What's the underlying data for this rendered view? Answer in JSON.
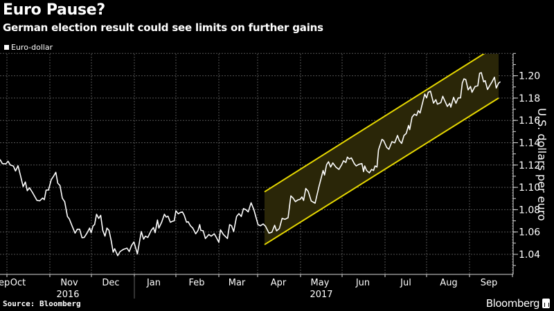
{
  "header": {
    "title": "Euro Pause?",
    "subtitle": "German election result could see limits on further gains"
  },
  "footer": {
    "source": "Source: Bloomberg",
    "brand": "Bloomberg"
  },
  "colors": {
    "background": "#000000",
    "line": "#ffffff",
    "channel": "#e6d800",
    "channel_fill": "#2a2608",
    "grid": "#555555"
  },
  "chart_data": {
    "type": "line",
    "title": "Euro Pause?",
    "subtitle": "German election result could see limits on further gains",
    "legend": [
      {
        "label": "Euro-dollar",
        "color": "#ffffff"
      }
    ],
    "legend_placement": "top-left",
    "xlabel": "",
    "ylabel": "U.S. dollars per euro",
    "ylim": [
      1.022,
      1.22
    ],
    "y_ticks": [
      "1.04",
      "1.06",
      "1.08",
      "1.10",
      "1.12",
      "1.14",
      "1.16",
      "1.18",
      "1.20"
    ],
    "x_unit": "days since 2016-10-01",
    "xlim": [
      -5,
      361
    ],
    "x_ticks": [
      {
        "label": "Sep",
        "day": -4
      },
      {
        "label": "Oct",
        "day": 8
      },
      {
        "label": "Nov",
        "day": 45
      },
      {
        "label": "Dec",
        "day": 75
      },
      {
        "label": "Jan",
        "day": 106
      },
      {
        "label": "Feb",
        "day": 137
      },
      {
        "label": "Mar",
        "day": 166
      },
      {
        "label": "Apr",
        "day": 196
      },
      {
        "label": "May",
        "day": 226
      },
      {
        "label": "Jun",
        "day": 257
      },
      {
        "label": "Jul",
        "day": 288
      },
      {
        "label": "Aug",
        "day": 319
      },
      {
        "label": "Sep",
        "day": 348
      }
    ],
    "month_boundaries": [
      0,
      31,
      61,
      92,
      122,
      153,
      181,
      212,
      242,
      273,
      303,
      334,
      365
    ],
    "years": [
      {
        "label": "2016",
        "day": 44
      },
      {
        "label": "2017",
        "day": 227
      }
    ],
    "year_separator_day": 92,
    "grid": true,
    "series": [
      {
        "name": "Euro-dollar",
        "points": [
          [
            -5,
            1.125
          ],
          [
            -3.3,
            1.1213
          ],
          [
            -0.8,
            1.121
          ],
          [
            0.8,
            1.1234
          ],
          [
            2.5,
            1.12
          ],
          [
            4.7,
            1.119
          ],
          [
            6.2,
            1.1147
          ],
          [
            8,
            1.1194
          ],
          [
            9.7,
            1.111
          ],
          [
            11.7,
            1.1007
          ],
          [
            13.3,
            1.1048
          ],
          [
            14.7,
            1.097
          ],
          [
            16.3,
            1.0996
          ],
          [
            18.3,
            1.0957
          ],
          [
            21.7,
            1.0883
          ],
          [
            23.7,
            1.0879
          ],
          [
            25.8,
            1.0904
          ],
          [
            27,
            1.089
          ],
          [
            28.3,
            1.0976
          ],
          [
            30,
            1.0976
          ],
          [
            32,
            1.1069
          ],
          [
            33.7,
            1.11
          ],
          [
            35.3,
            1.1135
          ],
          [
            36.7,
            1.1038
          ],
          [
            38.3,
            1.1017
          ],
          [
            40,
            1.0903
          ],
          [
            41.7,
            1.0872
          ],
          [
            43.7,
            1.0739
          ],
          [
            45,
            1.0718
          ],
          [
            47,
            1.0656
          ],
          [
            49.2,
            1.059
          ],
          [
            50.8,
            1.0625
          ],
          [
            52.5,
            1.0625
          ],
          [
            54.2,
            1.0549
          ],
          [
            55.8,
            1.0551
          ],
          [
            58,
            1.0594
          ],
          [
            59.7,
            1.0635
          ],
          [
            60.8,
            1.0594
          ],
          [
            62.2,
            1.0656
          ],
          [
            63.3,
            1.0666
          ],
          [
            64.7,
            1.0759
          ],
          [
            66.3,
            1.0722
          ],
          [
            67.7,
            1.0749
          ],
          [
            69.2,
            1.0615
          ],
          [
            70.8,
            1.0563
          ],
          [
            72.2,
            1.0635
          ],
          [
            73.7,
            1.0615
          ],
          [
            75.3,
            1.0522
          ],
          [
            76.7,
            1.0419
          ],
          [
            77.8,
            1.045
          ],
          [
            80,
            1.0388
          ],
          [
            81.7,
            1.0425
          ],
          [
            84.2,
            1.0445
          ],
          [
            86.7,
            1.0456
          ],
          [
            88.3,
            1.0425
          ],
          [
            90,
            1.048
          ],
          [
            91.7,
            1.0511
          ],
          [
            94.2,
            1.0404
          ],
          [
            97,
            1.0604
          ],
          [
            98.7,
            1.0536
          ],
          [
            100,
            1.0563
          ],
          [
            101.7,
            1.0551
          ],
          [
            104.2,
            1.0615
          ],
          [
            105.8,
            1.064
          ],
          [
            107,
            1.0594
          ],
          [
            108.7,
            1.0708
          ],
          [
            109.7,
            1.0635
          ],
          [
            111.7,
            1.0687
          ],
          [
            113.7,
            1.0759
          ],
          [
            115,
            1.0734
          ],
          [
            116.3,
            1.0742
          ],
          [
            118,
            1.0687
          ],
          [
            119.7,
            1.0697
          ],
          [
            120.8,
            1.07
          ],
          [
            122,
            1.079
          ],
          [
            123.7,
            1.0763
          ],
          [
            125.3,
            1.0776
          ],
          [
            126.7,
            1.078
          ],
          [
            128,
            1.075
          ],
          [
            129.7,
            1.0687
          ],
          [
            130.8,
            1.0693
          ],
          [
            132.5,
            1.0656
          ],
          [
            134.2,
            1.0635
          ],
          [
            136.3,
            1.0584
          ],
          [
            138,
            1.0615
          ],
          [
            139.2,
            1.0666
          ],
          [
            140,
            1.0615
          ],
          [
            141.7,
            1.0611
          ],
          [
            143.3,
            1.0542
          ],
          [
            145.8,
            1.0578
          ],
          [
            147.5,
            1.0563
          ],
          [
            149.7,
            1.0584
          ],
          [
            151.3,
            1.0549
          ],
          [
            153,
            1.0507
          ],
          [
            154.2,
            1.0619
          ],
          [
            156.3,
            1.0578
          ],
          [
            159.2,
            1.0542
          ],
          [
            160.8,
            1.0666
          ],
          [
            162.2,
            1.0656
          ],
          [
            163.7,
            1.0604
          ],
          [
            165.8,
            1.0739
          ],
          [
            167.5,
            1.0765
          ],
          [
            169.2,
            1.0739
          ],
          [
            170.8,
            1.081
          ],
          [
            172.5,
            1.08
          ],
          [
            174.2,
            1.078
          ],
          [
            176.3,
            1.0862
          ],
          [
            178.3,
            1.08
          ],
          [
            181.3,
            1.0666
          ],
          [
            183,
            1.0656
          ],
          [
            185,
            1.0672
          ],
          [
            186.7,
            1.0652
          ],
          [
            189.2,
            1.059
          ],
          [
            191.3,
            1.0598
          ],
          [
            193.3,
            1.066
          ],
          [
            194.7,
            1.061
          ],
          [
            196.7,
            1.0631
          ],
          [
            198.7,
            1.0722
          ],
          [
            200.8,
            1.0714
          ],
          [
            203,
            1.0728
          ],
          [
            205,
            1.0924
          ],
          [
            206.7,
            1.0903
          ],
          [
            208.3,
            1.0872
          ],
          [
            210,
            1.0887
          ],
          [
            211.7,
            1.0893
          ],
          [
            213,
            1.0914
          ],
          [
            214.2,
            1.0883
          ],
          [
            215.8,
            1.099
          ],
          [
            217.5,
            1.0965
          ],
          [
            219.7,
            1.0878
          ],
          [
            222.5,
            1.0858
          ],
          [
            225.3,
            1.1007
          ],
          [
            228.3,
            1.1151
          ],
          [
            229.3,
            1.111
          ],
          [
            230.8,
            1.1203
          ],
          [
            232.2,
            1.123
          ],
          [
            233.7,
            1.1182
          ],
          [
            235.3,
            1.1219
          ],
          [
            237.5,
            1.1182
          ],
          [
            239.7,
            1.1161
          ],
          [
            241.7,
            1.1203
          ],
          [
            243,
            1.1238
          ],
          [
            244.7,
            1.1223
          ],
          [
            245.8,
            1.1271
          ],
          [
            247.2,
            1.1254
          ],
          [
            248.7,
            1.1264
          ],
          [
            250.8,
            1.1213
          ],
          [
            252.2,
            1.1192
          ],
          [
            254.2,
            1.1207
          ],
          [
            256.3,
            1.1213
          ],
          [
            257.5,
            1.1141
          ],
          [
            258.3,
            1.1192
          ],
          [
            259.7,
            1.1151
          ],
          [
            261.7,
            1.113
          ],
          [
            263.3,
            1.1161
          ],
          [
            264.7,
            1.1151
          ],
          [
            265.8,
            1.1192
          ],
          [
            267.2,
            1.1182
          ],
          [
            268.3,
            1.1337
          ],
          [
            270.8,
            1.143
          ],
          [
            272,
            1.1419
          ],
          [
            274.2,
            1.1358
          ],
          [
            275.8,
            1.1341
          ],
          [
            278,
            1.1409
          ],
          [
            280,
            1.1399
          ],
          [
            282,
            1.1465
          ],
          [
            283.3,
            1.1419
          ],
          [
            285,
            1.1394
          ],
          [
            286.7,
            1.1465
          ],
          [
            288.3,
            1.1483
          ],
          [
            290,
            1.1555
          ],
          [
            290.8,
            1.1517
          ],
          [
            292.5,
            1.1629
          ],
          [
            294.2,
            1.1656
          ],
          [
            295.8,
            1.1644
          ],
          [
            297,
            1.1687
          ],
          [
            298.3,
            1.1666
          ],
          [
            299.7,
            1.1738
          ],
          [
            301.7,
            1.1835
          ],
          [
            303,
            1.1801
          ],
          [
            304.2,
            1.1852
          ],
          [
            305.8,
            1.1862
          ],
          [
            308,
            1.1755
          ],
          [
            309.7,
            1.1786
          ],
          [
            310.8,
            1.1745
          ],
          [
            313.3,
            1.176
          ],
          [
            314.7,
            1.1816
          ],
          [
            316.3,
            1.1771
          ],
          [
            318,
            1.1725
          ],
          [
            319.7,
            1.1753
          ],
          [
            320.5,
            1.1719
          ],
          [
            322.5,
            1.1807
          ],
          [
            324.2,
            1.1753
          ],
          [
            325.8,
            1.1801
          ],
          [
            327.5,
            1.1801
          ],
          [
            328.8,
            1.1935
          ],
          [
            330,
            1.1972
          ],
          [
            331.3,
            1.1966
          ],
          [
            333,
            1.1873
          ],
          [
            334.7,
            1.1904
          ],
          [
            335.8,
            1.1852
          ],
          [
            338,
            1.1904
          ],
          [
            340,
            1.191
          ],
          [
            341.3,
            1.2022
          ],
          [
            342.5,
            1.2028
          ],
          [
            344.2,
            1.1946
          ],
          [
            345.3,
            1.1956
          ],
          [
            347,
            1.1877
          ],
          [
            348.7,
            1.1914
          ],
          [
            350.3,
            1.1946
          ],
          [
            352,
            1.1987
          ],
          [
            353.3,
            1.189
          ],
          [
            355,
            1.1934
          ],
          [
            356.3,
            1.1946
          ]
        ]
      }
    ],
    "annotations": [
      {
        "type": "channel",
        "start_day": 186,
        "end_day": 355,
        "lower": [
          1.0487,
          1.18
        ],
        "upper": [
          1.096,
          1.228
        ]
      }
    ]
  }
}
